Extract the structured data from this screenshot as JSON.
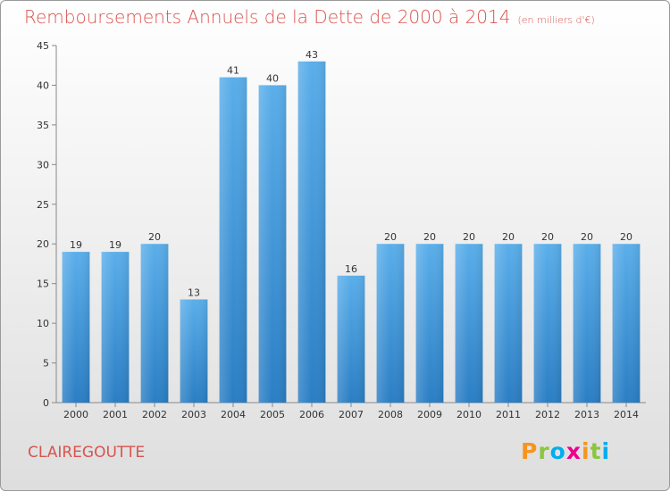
{
  "header": {
    "title": "Remboursements Annuels de la Dette de 2000 à 2014",
    "unit": "(en milliers d'€)"
  },
  "footer": {
    "town": "CLAIREGOUTTE",
    "logo_text": "Proxiti",
    "logo_colors": [
      "#f7941d",
      "#8cc63f",
      "#00aeef",
      "#ec008c",
      "#f7941d",
      "#8cc63f",
      "#00aeef"
    ]
  },
  "chart_data": {
    "type": "bar",
    "categories": [
      "2000",
      "2001",
      "2002",
      "2003",
      "2004",
      "2005",
      "2006",
      "2007",
      "2008",
      "2009",
      "2010",
      "2011",
      "2012",
      "2013",
      "2014"
    ],
    "values": [
      19,
      19,
      20,
      13,
      41,
      40,
      43,
      16,
      20,
      20,
      20,
      20,
      20,
      20,
      20
    ],
    "title": "Remboursements Annuels de la Dette de 2000 à 2014",
    "ylim": [
      0,
      45
    ],
    "yticks": [
      0,
      5,
      10,
      15,
      20,
      25,
      30,
      35,
      40,
      45
    ],
    "grid": false,
    "bar_color": "#3a8fd6"
  }
}
